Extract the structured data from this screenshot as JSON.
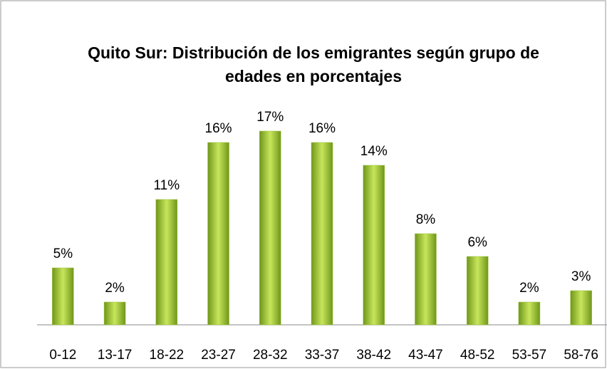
{
  "chart_data": {
    "type": "bar",
    "title": "Quito Sur: Distribución de los emigrantes según grupo de edades en porcentajes",
    "categories": [
      "0-12",
      "13-17",
      "18-22",
      "23-27",
      "28-32",
      "33-37",
      "38-42",
      "43-47",
      "48-52",
      "53-57",
      "58-76"
    ],
    "values": [
      5,
      2,
      11,
      16,
      17,
      16,
      14,
      8,
      6,
      2,
      3
    ],
    "value_labels": [
      "5%",
      "2%",
      "11%",
      "16%",
      "17%",
      "16%",
      "14%",
      "8%",
      "6%",
      "2%",
      "3%"
    ],
    "color": "#9bc43a"
  }
}
